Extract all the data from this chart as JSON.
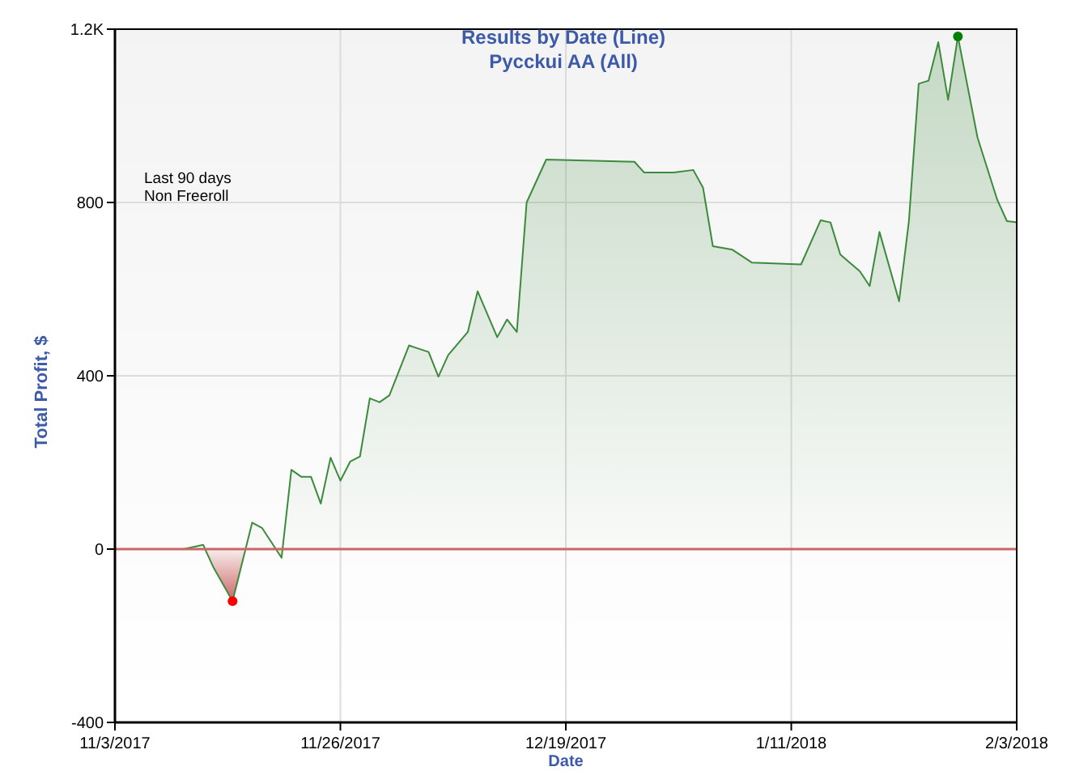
{
  "chart_data": {
    "type": "area",
    "title": "Results by Date (Line)",
    "subtitle": "Pycckui AA (All)",
    "ylabel": "Total Profit, $",
    "xlabel": "Date",
    "annotations": [
      "Last 90 days",
      "Non Freeroll"
    ],
    "xlim": [
      "2017-11-03",
      "2018-02-03"
    ],
    "xticks": [
      {
        "value": "2017-11-03",
        "label": "11/3/2017"
      },
      {
        "value": "2017-11-26",
        "label": "11/26/2017"
      },
      {
        "value": "2017-12-19",
        "label": "12/19/2017"
      },
      {
        "value": "2018-01-11",
        "label": "1/11/2018"
      },
      {
        "value": "2018-02-03",
        "label": "2/3/2018"
      }
    ],
    "ylim": [
      -400,
      1200
    ],
    "yticks": [
      -400,
      0,
      400,
      800,
      {
        "value": 1200,
        "label": "1.2K"
      }
    ],
    "grid": true,
    "ref_lines": [
      {
        "axis": "y",
        "value": 0,
        "color": "#cc6666"
      }
    ],
    "series": [
      {
        "color": "#3c8a3c",
        "x": [
          "2017-11-05",
          "2017-11-10",
          "2017-11-12",
          "2017-11-13",
          "2017-11-15",
          "2017-11-17",
          "2017-11-18",
          "2017-11-20",
          "2017-11-21",
          "2017-11-22",
          "2017-11-23",
          "2017-11-24",
          "2017-11-25",
          "2017-11-26",
          "2017-11-27",
          "2017-11-28",
          "2017-11-29",
          "2017-11-30",
          "2017-12-01",
          "2017-12-03",
          "2017-12-05",
          "2017-12-06",
          "2017-12-07",
          "2017-12-09",
          "2017-12-10",
          "2017-12-12",
          "2017-12-13",
          "2017-12-14",
          "2017-12-15",
          "2017-12-17",
          "2017-12-26",
          "2017-12-27",
          "2017-12-30",
          "2018-01-01",
          "2018-01-02",
          "2018-01-03",
          "2018-01-05",
          "2018-01-07",
          "2018-01-12",
          "2018-01-14",
          "2018-01-15",
          "2018-01-16",
          "2018-01-18",
          "2018-01-19",
          "2018-01-20",
          "2018-01-22",
          "2018-01-23",
          "2018-01-24",
          "2018-01-25",
          "2018-01-26",
          "2018-01-27",
          "2018-01-28",
          "2018-01-30",
          "2018-02-01",
          "2018-02-02",
          "2018-02-03"
        ],
        "values": [
          0,
          0,
          10,
          -40,
          -120,
          61,
          49,
          -20,
          183,
          167,
          167,
          105,
          211,
          158,
          202,
          214,
          348,
          339,
          355,
          470,
          455,
          398,
          448,
          501,
          595,
          489,
          530,
          501,
          800,
          899,
          894,
          869,
          869,
          875,
          834,
          699,
          691,
          661,
          657,
          759,
          754,
          680,
          641,
          607,
          732,
          572,
          757,
          1074,
          1081,
          1170,
          1037,
          1183,
          950,
          807,
          757,
          754
        ]
      },
      {
        "type": "scatter",
        "x": [
          "2017-11-15",
          "2018-01-28"
        ],
        "values": [
          -120,
          1183
        ],
        "colors": [
          "#ff0000",
          "#008000"
        ]
      }
    ]
  }
}
